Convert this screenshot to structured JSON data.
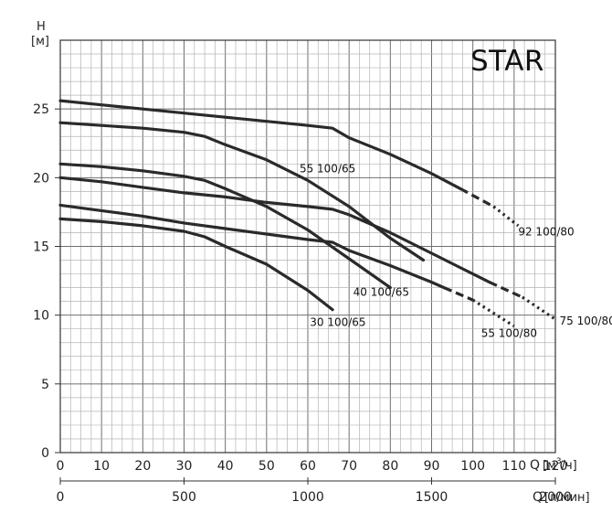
{
  "chart_data": {
    "type": "line",
    "title": "STAR",
    "y_axis": {
      "label_top": "H",
      "unit": "[м]",
      "range": [
        0,
        30
      ],
      "ticks": [
        0,
        5,
        10,
        15,
        20,
        25
      ],
      "tick_labels": [
        "0",
        "5",
        "10",
        "15",
        "20",
        "25"
      ]
    },
    "x_axis": {
      "label": "Q",
      "unit": "[м³/ч]",
      "unit_base": "[м",
      "unit_sup": "3",
      "unit_tail": "/ч]",
      "range": [
        0,
        120
      ],
      "ticks": [
        0,
        10,
        20,
        30,
        40,
        50,
        60,
        70,
        80,
        90,
        100,
        110,
        120
      ],
      "tick_labels": [
        "0",
        "10",
        "20",
        "30",
        "40",
        "50",
        "60",
        "70",
        "80",
        "90",
        "100",
        "110",
        "120"
      ]
    },
    "x2_axis": {
      "label": "Q",
      "unit": "[л/мин]",
      "range": [
        0,
        2000
      ],
      "ticks": [
        0,
        500,
        1000,
        1500,
        2000
      ],
      "tick_labels": [
        "0",
        "500",
        "1000",
        "1500",
        "2000"
      ]
    },
    "grid": true,
    "series": [
      {
        "name": "92 100/80",
        "solid": [
          [
            0,
            25.6
          ],
          [
            10,
            25.3
          ],
          [
            20,
            25.0
          ],
          [
            30,
            24.7
          ],
          [
            40,
            24.4
          ],
          [
            50,
            24.1
          ],
          [
            60,
            23.8
          ],
          [
            66,
            23.6
          ],
          [
            70,
            22.9
          ],
          [
            80,
            21.7
          ],
          [
            90,
            20.3
          ],
          [
            97,
            19.2
          ]
        ],
        "dashed": [
          [
            97,
            19.2
          ],
          [
            105,
            17.9
          ]
        ],
        "dotted": [
          [
            105,
            17.9
          ],
          [
            111,
            16.5
          ]
        ]
      },
      {
        "name": "75 100/80",
        "solid": [
          [
            0,
            20.0
          ],
          [
            10,
            19.7
          ],
          [
            20,
            19.3
          ],
          [
            30,
            18.9
          ],
          [
            40,
            18.6
          ],
          [
            50,
            18.2
          ],
          [
            60,
            17.9
          ],
          [
            66,
            17.7
          ],
          [
            70,
            17.3
          ],
          [
            80,
            16.0
          ],
          [
            90,
            14.5
          ],
          [
            100,
            13.0
          ],
          [
            104,
            12.4
          ]
        ],
        "dashed": [
          [
            104,
            12.4
          ],
          [
            112,
            11.3
          ]
        ],
        "dotted": [
          [
            112,
            11.3
          ],
          [
            120,
            9.7
          ]
        ]
      },
      {
        "name": "55 100/65",
        "solid": [
          [
            0,
            24.0
          ],
          [
            10,
            23.8
          ],
          [
            20,
            23.6
          ],
          [
            30,
            23.3
          ],
          [
            35,
            23.0
          ],
          [
            40,
            22.4
          ],
          [
            50,
            21.3
          ],
          [
            60,
            19.8
          ],
          [
            70,
            17.9
          ],
          [
            80,
            15.6
          ],
          [
            88,
            14.0
          ]
        ]
      },
      {
        "name": "55 100/80",
        "solid": [
          [
            0,
            18.0
          ],
          [
            10,
            17.6
          ],
          [
            20,
            17.2
          ],
          [
            30,
            16.7
          ],
          [
            40,
            16.3
          ],
          [
            50,
            15.9
          ],
          [
            60,
            15.5
          ],
          [
            66,
            15.3
          ],
          [
            70,
            14.7
          ],
          [
            80,
            13.6
          ],
          [
            90,
            12.4
          ],
          [
            93,
            12.0
          ]
        ],
        "dashed": [
          [
            93,
            12.0
          ],
          [
            100,
            11.1
          ]
        ],
        "dotted": [
          [
            100,
            11.1
          ],
          [
            110,
            9.2
          ]
        ]
      },
      {
        "name": "40 100/65",
        "solid": [
          [
            0,
            21.0
          ],
          [
            10,
            20.8
          ],
          [
            20,
            20.5
          ],
          [
            30,
            20.1
          ],
          [
            35,
            19.8
          ],
          [
            40,
            19.2
          ],
          [
            50,
            17.9
          ],
          [
            60,
            16.2
          ],
          [
            70,
            14.1
          ],
          [
            80,
            12.0
          ]
        ]
      },
      {
        "name": "30 100/65",
        "solid": [
          [
            0,
            17.0
          ],
          [
            10,
            16.8
          ],
          [
            20,
            16.5
          ],
          [
            30,
            16.1
          ],
          [
            35,
            15.7
          ],
          [
            40,
            15.0
          ],
          [
            50,
            13.7
          ],
          [
            60,
            11.8
          ],
          [
            66,
            10.4
          ]
        ]
      }
    ],
    "labels": [
      {
        "series": "92 100/80",
        "text": "92 100/80",
        "x": 111,
        "y": 15.8
      },
      {
        "series": "75 100/80",
        "text": "75 100/80",
        "x": 121,
        "y": 9.3
      },
      {
        "series": "55 100/65",
        "text": "55 100/65",
        "x": 58,
        "y": 20.4
      },
      {
        "series": "55 100/80",
        "text": "55 100/80",
        "x": 102,
        "y": 8.4
      },
      {
        "series": "40 100/65",
        "text": "40 100/65",
        "x": 71,
        "y": 11.4
      },
      {
        "series": "30 100/65",
        "text": "30 100/65",
        "x": 60.5,
        "y": 9.2
      }
    ]
  }
}
